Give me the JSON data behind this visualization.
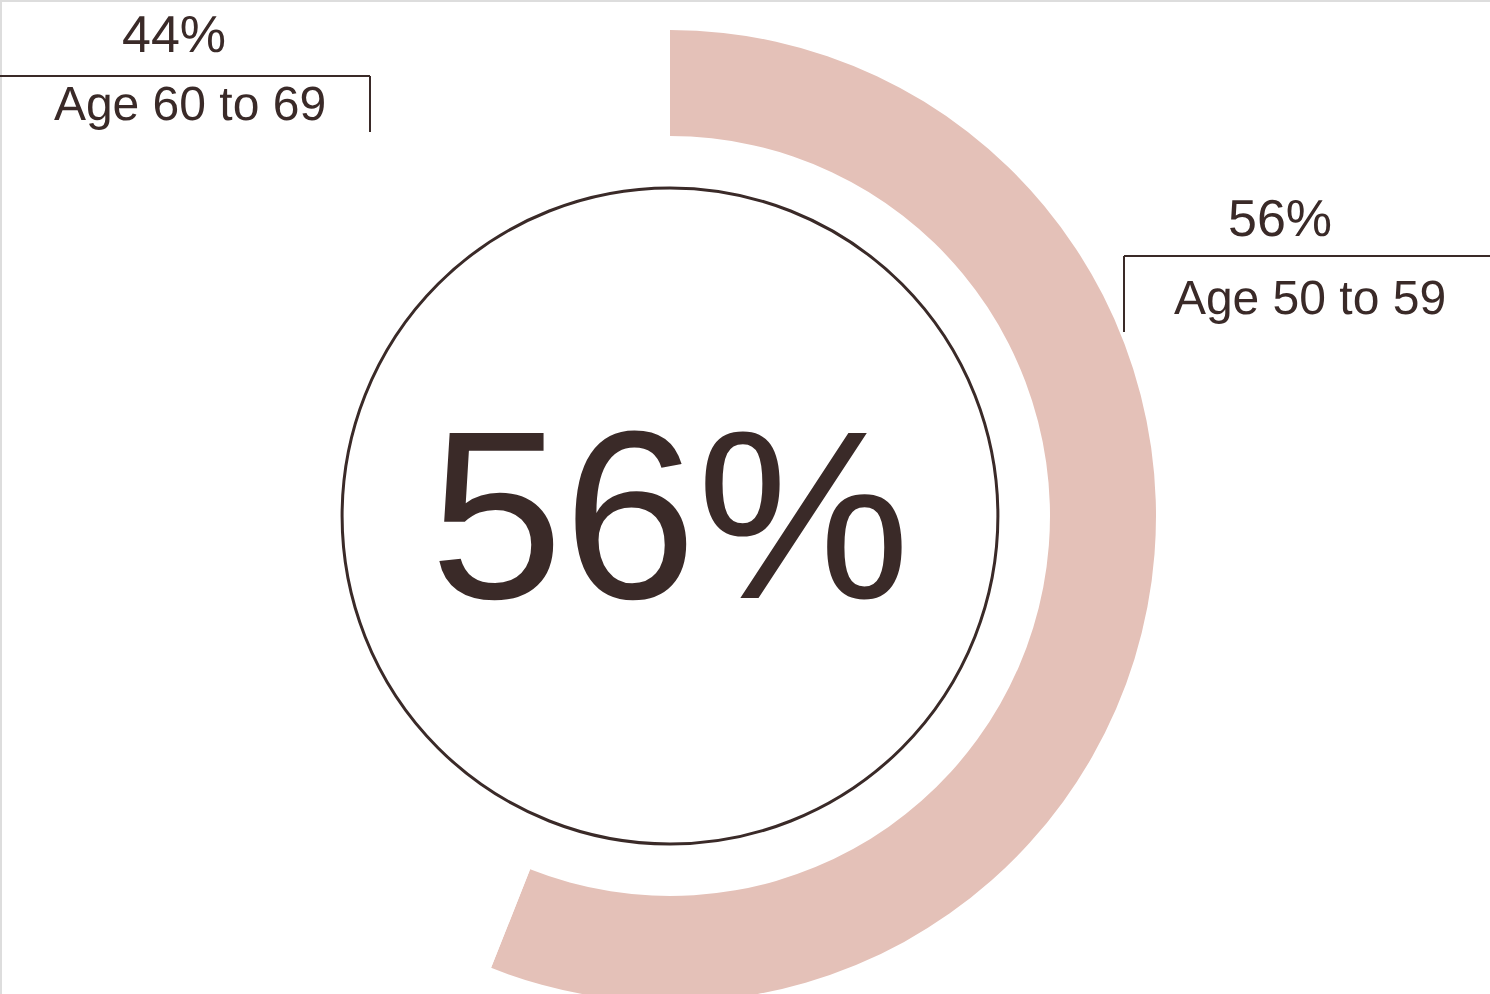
{
  "chart_data": {
    "type": "donut",
    "categories": [
      "Age 50 to 59",
      "Age 60 to 69"
    ],
    "values": [
      56,
      44
    ],
    "colors": [
      "#e4c1b8",
      "#ffffff"
    ],
    "value_labels": [
      "56%",
      "44%"
    ],
    "annotations": [
      "56%"
    ]
  }
}
